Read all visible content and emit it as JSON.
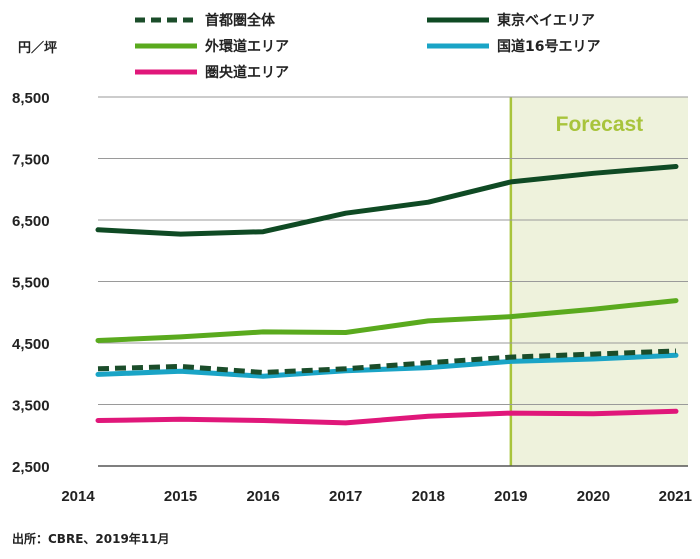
{
  "chart_data": {
    "type": "line",
    "unit": "円／坪",
    "categories": [
      "2014",
      "2015",
      "2016",
      "2017",
      "2018",
      "2019",
      "2020",
      "2021"
    ],
    "y_ticks": [
      "8,500",
      "7,500",
      "6,500",
      "5,500",
      "4,500",
      "3,500",
      "2,500"
    ],
    "ylim": [
      2500,
      8500
    ],
    "forecast": {
      "label": "Forecast",
      "from": "2019",
      "to": "2021"
    },
    "legend_position": "top",
    "series": [
      {
        "name": "首都圏全体",
        "color": "#1b4d2a",
        "dashed": true,
        "values": [
          4080,
          4120,
          4020,
          4080,
          4180,
          4270,
          4320,
          4370
        ]
      },
      {
        "name": "東京ベイエリア",
        "color": "#0f4a24",
        "dashed": false,
        "values": [
          6340,
          6270,
          6310,
          6610,
          6790,
          7120,
          7260,
          7370
        ]
      },
      {
        "name": "外環道エリア",
        "color": "#5aaa1e",
        "dashed": false,
        "values": [
          4540,
          4600,
          4680,
          4670,
          4860,
          4930,
          5050,
          5190
        ]
      },
      {
        "name": "国道16号エリア",
        "color": "#1aa4c6",
        "dashed": false,
        "values": [
          3990,
          4040,
          3960,
          4050,
          4100,
          4200,
          4240,
          4300
        ]
      },
      {
        "name": "圏央道エリア",
        "color": "#e0177a",
        "dashed": false,
        "values": [
          3240,
          3260,
          3240,
          3200,
          3310,
          3360,
          3350,
          3390
        ]
      }
    ],
    "source": "出所：CBRE、2019年11月"
  }
}
